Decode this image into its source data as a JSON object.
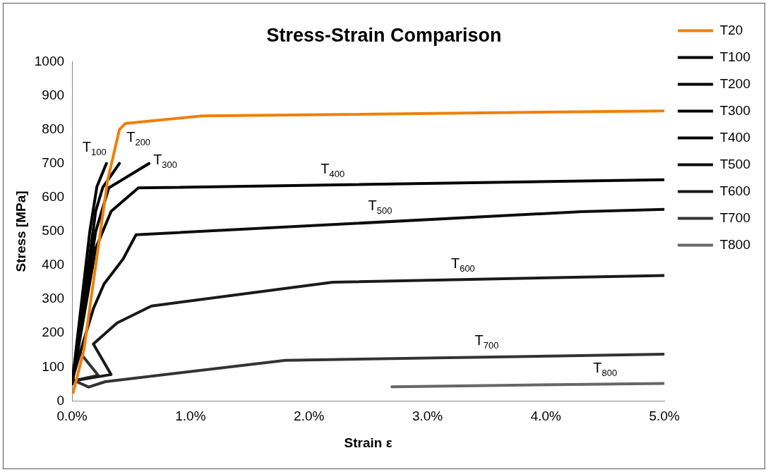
{
  "chart_data": {
    "type": "line",
    "title": "Stress-Strain Comparison",
    "xlabel": "Strain ε",
    "ylabel": "Stress [MPa]",
    "xlim": [
      0,
      5
    ],
    "xticks": [
      {
        "value": 0,
        "label": "0.0%"
      },
      {
        "value": 1,
        "label": "1.0%"
      },
      {
        "value": 2,
        "label": "2.0%"
      },
      {
        "value": 3,
        "label": "3.0%"
      },
      {
        "value": 4,
        "label": "4.0%"
      },
      {
        "value": 5,
        "label": "5.0%"
      }
    ],
    "ylim": [
      0,
      1000
    ],
    "yticks": [
      0,
      100,
      200,
      300,
      400,
      500,
      600,
      700,
      800,
      900,
      1000
    ],
    "grid": false,
    "legend": "right",
    "marker": "none",
    "line_style": "solid",
    "series": [
      {
        "name": "T20",
        "color": "#f07f09",
        "x": [
          0.01,
          0.1,
          0.2,
          0.3,
          0.4,
          0.45,
          1.1,
          5
        ],
        "values": [
          25,
          150,
          400,
          650,
          800,
          818,
          840,
          855
        ]
      },
      {
        "name": "T100",
        "color": "#000000",
        "x": [
          0,
          0.05,
          0.1,
          0.15,
          0.21,
          0.29
        ],
        "values": [
          50,
          200,
          350,
          500,
          632,
          700
        ]
      },
      {
        "name": "T200",
        "color": "#000000",
        "x": [
          0,
          0.1,
          0.2,
          0.26,
          0.4
        ],
        "values": [
          50,
          300,
          560,
          630,
          700
        ]
      },
      {
        "name": "T300",
        "color": "#000000",
        "x": [
          0,
          0.1,
          0.2,
          0.31,
          0.65
        ],
        "values": [
          50,
          280,
          500,
          628,
          700
        ]
      },
      {
        "name": "T400",
        "color": "#000000",
        "x": [
          0,
          0.1,
          0.2,
          0.33,
          0.56,
          5
        ],
        "values": [
          50,
          250,
          450,
          559,
          628,
          652
        ]
      },
      {
        "name": "T500",
        "color": "#0d0d0d",
        "x": [
          0,
          0.1,
          0.18,
          0.27,
          0.43,
          0.54,
          2.2,
          4.3,
          5
        ],
        "values": [
          60,
          180,
          272,
          345,
          418,
          490,
          520,
          558,
          565
        ]
      },
      {
        "name": "T600",
        "color": "#1a1a1a",
        "x": [
          0.02,
          0.33,
          0.18,
          0.38,
          0.67,
          2.2,
          5
        ],
        "values": [
          60,
          78,
          168,
          230,
          280,
          350,
          370
        ]
      },
      {
        "name": "T700",
        "color": "#333333",
        "x": [
          0,
          0.05,
          0.22,
          0.02,
          0.14,
          0.28,
          1.8,
          5
        ],
        "values": [
          75,
          150,
          76,
          60,
          41,
          57,
          120,
          138
        ]
      },
      {
        "name": "T800",
        "color": "#666666",
        "x": [
          2.7,
          5
        ],
        "values": [
          42,
          52
        ]
      }
    ],
    "annotations": [
      {
        "text": "T$_{100}$",
        "x": 0.29,
        "y": 700
      },
      {
        "text": "T$_{200}$",
        "x": 0.4,
        "y": 700
      },
      {
        "text": "T$_{300}$",
        "x": 0.65,
        "y": 700
      },
      {
        "text": "T$_{400}$",
        "x": 2.2,
        "y": 637
      },
      {
        "text": "T$_{500}$",
        "x": 2.6,
        "y": 527
      },
      {
        "text": "T$_{600}$",
        "x": 3.3,
        "y": 358
      },
      {
        "text": "T$_{700}$",
        "x": 3.5,
        "y": 130
      },
      {
        "text": "T$_{800}$",
        "x": 4.5,
        "y": 50
      }
    ]
  }
}
